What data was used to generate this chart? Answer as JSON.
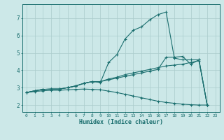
{
  "xlabel": "Humidex (Indice chaleur)",
  "bg_color": "#cce8e8",
  "grid_color": "#aacccc",
  "line_color": "#1a6e6e",
  "xlim": [
    -0.5,
    23.5
  ],
  "ylim": [
    1.6,
    7.8
  ],
  "xticks": [
    0,
    1,
    2,
    3,
    4,
    5,
    6,
    7,
    8,
    9,
    10,
    11,
    12,
    13,
    14,
    15,
    16,
    17,
    18,
    19,
    20,
    21,
    22,
    23
  ],
  "yticks": [
    2,
    3,
    4,
    5,
    6,
    7
  ],
  "line1_x": [
    0,
    1,
    2,
    3,
    4,
    5,
    6,
    7,
    8,
    9,
    10,
    11,
    12,
    13,
    14,
    15,
    16,
    17,
    18,
    19,
    20,
    21,
    22
  ],
  "line1_y": [
    2.72,
    2.82,
    2.9,
    2.92,
    2.92,
    3.0,
    3.1,
    3.25,
    3.35,
    3.3,
    4.45,
    4.9,
    5.8,
    6.3,
    6.5,
    6.9,
    7.2,
    7.35,
    4.7,
    4.6,
    4.6,
    4.6,
    2.0
  ],
  "line2_x": [
    0,
    1,
    2,
    3,
    4,
    5,
    6,
    7,
    8,
    9,
    10,
    11,
    12,
    13,
    14,
    15,
    16,
    17,
    18,
    19,
    20,
    21,
    22
  ],
  "line2_y": [
    2.72,
    2.82,
    2.9,
    2.92,
    2.92,
    3.0,
    3.1,
    3.25,
    3.35,
    3.35,
    3.5,
    3.6,
    3.75,
    3.85,
    3.95,
    4.05,
    4.15,
    4.25,
    4.3,
    4.35,
    4.45,
    4.55,
    2.0
  ],
  "line3_x": [
    0,
    1,
    2,
    3,
    4,
    5,
    6,
    7,
    8,
    9,
    10,
    11,
    12,
    13,
    14,
    15,
    16,
    17,
    18,
    19,
    20,
    21,
    22
  ],
  "line3_y": [
    2.72,
    2.82,
    2.9,
    2.92,
    2.92,
    3.0,
    3.1,
    3.25,
    3.35,
    3.35,
    3.45,
    3.55,
    3.65,
    3.75,
    3.85,
    3.95,
    4.05,
    4.75,
    4.75,
    4.8,
    4.35,
    4.6,
    2.0
  ],
  "line4_x": [
    0,
    1,
    2,
    3,
    4,
    5,
    6,
    7,
    8,
    9,
    10,
    11,
    12,
    13,
    14,
    15,
    16,
    17,
    18,
    19,
    20,
    21,
    22
  ],
  "line4_y": [
    2.72,
    2.78,
    2.82,
    2.85,
    2.85,
    2.88,
    2.9,
    2.92,
    2.9,
    2.88,
    2.8,
    2.72,
    2.62,
    2.52,
    2.42,
    2.32,
    2.22,
    2.15,
    2.1,
    2.05,
    2.02,
    2.0,
    2.0
  ]
}
